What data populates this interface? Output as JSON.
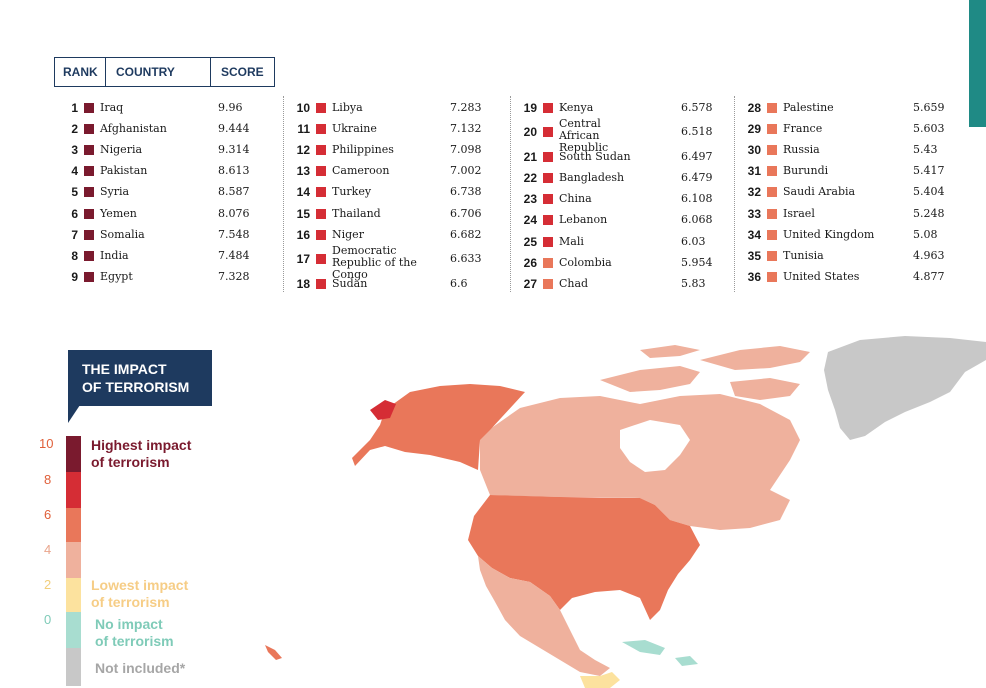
{
  "table_header": {
    "rank": "RANK",
    "country": "COUNTRY",
    "score": "SCORE"
  },
  "colors": {
    "very_high": "#7a1a2e",
    "high": "#d52d35",
    "medium": "#e9775a",
    "low": "#efb19d",
    "lowest": "#fce29e",
    "none": "#a8ddd0",
    "not_included": "#c8c8c8",
    "navy": "#1e3a5f",
    "teal": "#1f8a85"
  },
  "rankings": [
    {
      "rank": "1",
      "country": "Iraq",
      "score": "9.96"
    },
    {
      "rank": "2",
      "country": "Afghanistan",
      "score": "9.444"
    },
    {
      "rank": "3",
      "country": "Nigeria",
      "score": "9.314"
    },
    {
      "rank": "4",
      "country": "Pakistan",
      "score": "8.613"
    },
    {
      "rank": "5",
      "country": "Syria",
      "score": "8.587"
    },
    {
      "rank": "6",
      "country": "Yemen",
      "score": "8.076"
    },
    {
      "rank": "7",
      "country": "Somalia",
      "score": "7.548"
    },
    {
      "rank": "8",
      "country": "India",
      "score": "7.484"
    },
    {
      "rank": "9",
      "country": "Egypt",
      "score": "7.328"
    },
    {
      "rank": "10",
      "country": "Libya",
      "score": "7.283"
    },
    {
      "rank": "11",
      "country": "Ukraine",
      "score": "7.132"
    },
    {
      "rank": "12",
      "country": "Philippines",
      "score": "7.098"
    },
    {
      "rank": "13",
      "country": "Cameroon",
      "score": "7.002"
    },
    {
      "rank": "14",
      "country": "Turkey",
      "score": "6.738"
    },
    {
      "rank": "15",
      "country": "Thailand",
      "score": "6.706"
    },
    {
      "rank": "16",
      "country": "Niger",
      "score": "6.682"
    },
    {
      "rank": "17",
      "country": "Democratic Republic of the Congo",
      "score": "6.633"
    },
    {
      "rank": "18",
      "country": "Sudan",
      "score": "6.6"
    },
    {
      "rank": "19",
      "country": "Kenya",
      "score": "6.578"
    },
    {
      "rank": "20",
      "country": "Central African Republic",
      "score": "6.518"
    },
    {
      "rank": "21",
      "country": "South Sudan",
      "score": "6.497"
    },
    {
      "rank": "22",
      "country": "Bangladesh",
      "score": "6.479"
    },
    {
      "rank": "23",
      "country": "China",
      "score": "6.108"
    },
    {
      "rank": "24",
      "country": "Lebanon",
      "score": "6.068"
    },
    {
      "rank": "25",
      "country": "Mali",
      "score": "6.03"
    },
    {
      "rank": "26",
      "country": "Colombia",
      "score": "5.954"
    },
    {
      "rank": "27",
      "country": "Chad",
      "score": "5.83"
    },
    {
      "rank": "28",
      "country": "Palestine",
      "score": "5.659"
    },
    {
      "rank": "29",
      "country": "France",
      "score": "5.603"
    },
    {
      "rank": "30",
      "country": "Russia",
      "score": "5.43"
    },
    {
      "rank": "31",
      "country": "Burundi",
      "score": "5.417"
    },
    {
      "rank": "32",
      "country": "Saudi Arabia",
      "score": "5.404"
    },
    {
      "rank": "33",
      "country": "Israel",
      "score": "5.248"
    },
    {
      "rank": "34",
      "country": "United Kingdom",
      "score": "5.08"
    },
    {
      "rank": "35",
      "country": "Tunisia",
      "score": "4.963"
    },
    {
      "rank": "36",
      "country": "United States",
      "score": "4.877"
    }
  ],
  "legend": {
    "title_line1": "THE IMPACT",
    "title_line2": "OF TERRORISM",
    "ticks": [
      "10",
      "8",
      "6",
      "4",
      "2",
      "0"
    ],
    "highest": "Highest impact\nof terrorism",
    "lowest": "Lowest impact\nof terrorism",
    "none": "No impact\nof terrorism",
    "not_included": "Not included*"
  }
}
